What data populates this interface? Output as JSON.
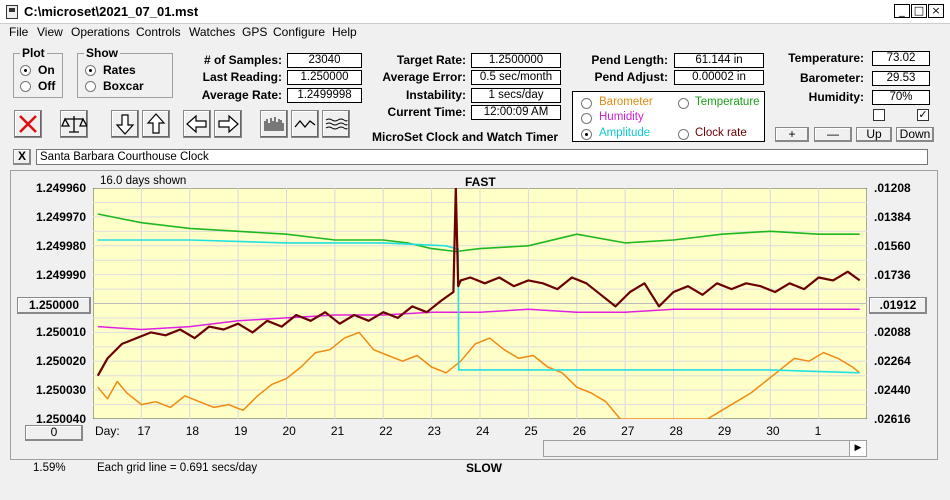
{
  "window": {
    "title": "C:\\microset\\2021_07_01.mst"
  },
  "menu": [
    "File",
    "View",
    "Operations",
    "Controls",
    "Watches",
    "GPS",
    "Configure",
    "Help"
  ],
  "plot_group": {
    "title": "Plot",
    "on_label": "On",
    "off_label": "Off",
    "selected": "On"
  },
  "show_group": {
    "title": "Show",
    "rates_label": "Rates",
    "boxcar_label": "Boxcar",
    "selected": "Rates"
  },
  "stats": {
    "samples_label": "# of Samples:",
    "samples_value": "23040",
    "last_label": "Last Reading:",
    "last_value": "1.250000",
    "avg_label": "Average Rate:",
    "avg_value": "1.2499998"
  },
  "rates": {
    "target_label": "Target Rate:",
    "target_value": "1.2500000",
    "error_label": "Average Error:",
    "error_value": "0.5 sec/month",
    "instab_label": "Instability:",
    "instab_value": "1 secs/day",
    "time_label": "Current Time:",
    "time_value": "12:00:09 AM"
  },
  "app_name": "MicroSet Clock and Watch Timer",
  "pend": {
    "length_label": "Pend Length:",
    "length_value": "61.144 in",
    "adjust_label": "Pend Adjust:",
    "adjust_value": "0.00002 in"
  },
  "overlay": {
    "barometer": "Barometer",
    "temperature": "Temperature",
    "humidity": "Humidity",
    "amplitude": "Amplitude",
    "clock_rate": "Clock rate",
    "selected": "Amplitude"
  },
  "env": {
    "temp_label": "Temperature:",
    "temp_value": "73.02",
    "baro_label": "Barometer:",
    "baro_value": "29.53",
    "hum_label": "Humidity:",
    "hum_value": "70%",
    "plus": "+",
    "minus": "—",
    "up": "Up",
    "down": "Down",
    "check1": false,
    "check2": true
  },
  "close_x": "X",
  "clock_name": "Santa Barbara Courthouse Clock",
  "chart_data": {
    "type": "line",
    "days_shown": "16.0 days shown",
    "top_label": "FAST",
    "bottom_label": "SLOW",
    "left_ticks": [
      "1.249960",
      "1.249970",
      "1.249980",
      "1.249990",
      "1.250000",
      "1.250010",
      "1.250020",
      "1.250030",
      "1.250040"
    ],
    "center_value": "1.250000",
    "right_ticks": [
      ".01208",
      ".01384",
      ".01560",
      ".01736",
      ".01912",
      ".02088",
      ".02264",
      ".02440",
      ".02616"
    ],
    "right_center": ".01912",
    "day_prefix": "Day:",
    "days": [
      "17",
      "18",
      "19",
      "20",
      "21",
      "22",
      "23",
      "24",
      "25",
      "26",
      "27",
      "28",
      "29",
      "30",
      "1"
    ],
    "zoom_value": "0",
    "grid_line_note": "Each grid line = 0.691 secs/day",
    "percent": "1.59%",
    "ylim": [
      1.24996,
      1.25004
    ],
    "colors": {
      "rate": "#6b0000",
      "temperature": "#1fb81f",
      "humidity": "#e020e0",
      "amplitude": "#22e0e0",
      "barometer": "#f08a10"
    },
    "series": [
      {
        "name": "Barometer",
        "x": [
          16.1,
          16.3,
          16.5,
          16.7,
          17.0,
          17.3,
          17.6,
          17.9,
          18.2,
          18.5,
          18.8,
          19.1,
          19.4,
          19.7,
          20.0,
          20.3,
          20.6,
          20.9,
          21.2,
          21.5,
          21.8,
          22.1,
          22.4,
          22.7,
          23.0,
          23.3,
          23.6,
          23.9,
          24.2,
          24.5,
          24.8,
          25.1,
          25.4,
          25.7,
          26.0,
          26.3,
          26.6,
          26.9,
          27.2,
          27.5,
          27.8,
          28.1,
          28.4,
          28.7,
          29.0,
          29.3,
          29.6,
          29.9,
          30.2,
          30.5,
          30.8,
          31.1,
          31.4,
          31.7,
          31.85
        ],
        "y": [
          1.250029,
          1.250033,
          1.250027,
          1.250031,
          1.250035,
          1.250034,
          1.250036,
          1.250032,
          1.250034,
          1.250036,
          1.250035,
          1.250037,
          1.250032,
          1.250028,
          1.250026,
          1.250022,
          1.250017,
          1.250016,
          1.250012,
          1.25001,
          1.250016,
          1.250018,
          1.25002,
          1.250018,
          1.250022,
          1.250024,
          1.25002,
          1.250014,
          1.250012,
          1.250016,
          1.250019,
          1.250018,
          1.250022,
          1.250024,
          1.250029,
          1.250031,
          1.250034,
          1.25004,
          1.25004,
          1.25004,
          1.25004,
          1.25004,
          1.25004,
          1.25004,
          1.250037,
          1.250034,
          1.250031,
          1.250027,
          1.250023,
          1.250019,
          1.25002,
          1.250017,
          1.250019,
          1.250022,
          1.250024
        ]
      },
      {
        "name": "Temperature",
        "x": [
          16.1,
          17.0,
          18.0,
          19.0,
          20.0,
          21.0,
          22.0,
          22.5,
          23.0,
          23.5,
          24.0,
          25.0,
          26.0,
          27.0,
          28.0,
          29.0,
          30.0,
          31.0,
          31.85
        ],
        "y": [
          1.249969,
          1.249972,
          1.249974,
          1.249975,
          1.249976,
          1.249978,
          1.249978,
          1.249979,
          1.249981,
          1.249982,
          1.249981,
          1.24998,
          1.249976,
          1.249979,
          1.249978,
          1.249976,
          1.249975,
          1.249976,
          1.249976
        ]
      },
      {
        "name": "Humidity",
        "x": [
          16.1,
          17.0,
          18.0,
          19.0,
          20.0,
          21.0,
          22.0,
          23.0,
          24.0,
          25.0,
          26.0,
          27.0,
          28.0,
          29.0,
          30.0,
          31.0,
          31.85
        ],
        "y": [
          1.250008,
          1.250009,
          1.250008,
          1.250006,
          1.250005,
          1.250004,
          1.250004,
          1.250003,
          1.250003,
          1.250002,
          1.250003,
          1.250003,
          1.250002,
          1.250002,
          1.250002,
          1.250002,
          1.250002
        ]
      },
      {
        "name": "Amplitude",
        "x": [
          16.1,
          18.0,
          20.0,
          22.0,
          23.3,
          23.5,
          23.55,
          23.56,
          24.0,
          25.0,
          26.0,
          28.0,
          30.0,
          31.85
        ],
        "y": [
          1.249978,
          1.249978,
          1.249979,
          1.249979,
          1.24998,
          1.249981,
          1.249981,
          1.250023,
          1.250023,
          1.250023,
          1.250023,
          1.250023,
          1.250023,
          1.250024
        ]
      },
      {
        "name": "Clock rate",
        "x": [
          16.1,
          16.3,
          16.6,
          16.9,
          17.2,
          17.5,
          17.8,
          18.1,
          18.4,
          18.7,
          19.0,
          19.3,
          19.6,
          19.9,
          20.2,
          20.5,
          20.8,
          21.1,
          21.4,
          21.7,
          22.0,
          22.3,
          22.6,
          22.9,
          23.2,
          23.45,
          23.5,
          23.55,
          23.6,
          23.8,
          24.1,
          24.4,
          24.7,
          25.0,
          25.3,
          25.6,
          25.9,
          26.2,
          26.5,
          26.8,
          27.1,
          27.4,
          27.7,
          28.0,
          28.3,
          28.6,
          28.9,
          29.2,
          29.5,
          29.8,
          30.1,
          30.4,
          30.7,
          31.0,
          31.3,
          31.6,
          31.85
        ],
        "y": [
          1.250025,
          1.250019,
          1.250014,
          1.250012,
          1.25001,
          1.250011,
          1.250009,
          1.250012,
          1.250008,
          1.250009,
          1.250007,
          1.25001,
          1.250006,
          1.250008,
          1.250004,
          1.250006,
          1.250003,
          1.250007,
          1.250004,
          1.250006,
          1.250003,
          1.250005,
          1.250001,
          1.250003,
          1.249999,
          1.249996,
          1.249953,
          1.249994,
          1.249992,
          1.249991,
          1.249993,
          1.249991,
          1.249994,
          1.249992,
          1.249993,
          1.249995,
          1.249991,
          1.249993,
          1.249997,
          1.250001,
          1.249996,
          1.249993,
          1.250001,
          1.249996,
          1.249994,
          1.249997,
          1.249993,
          1.249995,
          1.249993,
          1.249994,
          1.249996,
          1.249993,
          1.249995,
          1.249991,
          1.249992,
          1.249989,
          1.249992
        ]
      }
    ]
  }
}
